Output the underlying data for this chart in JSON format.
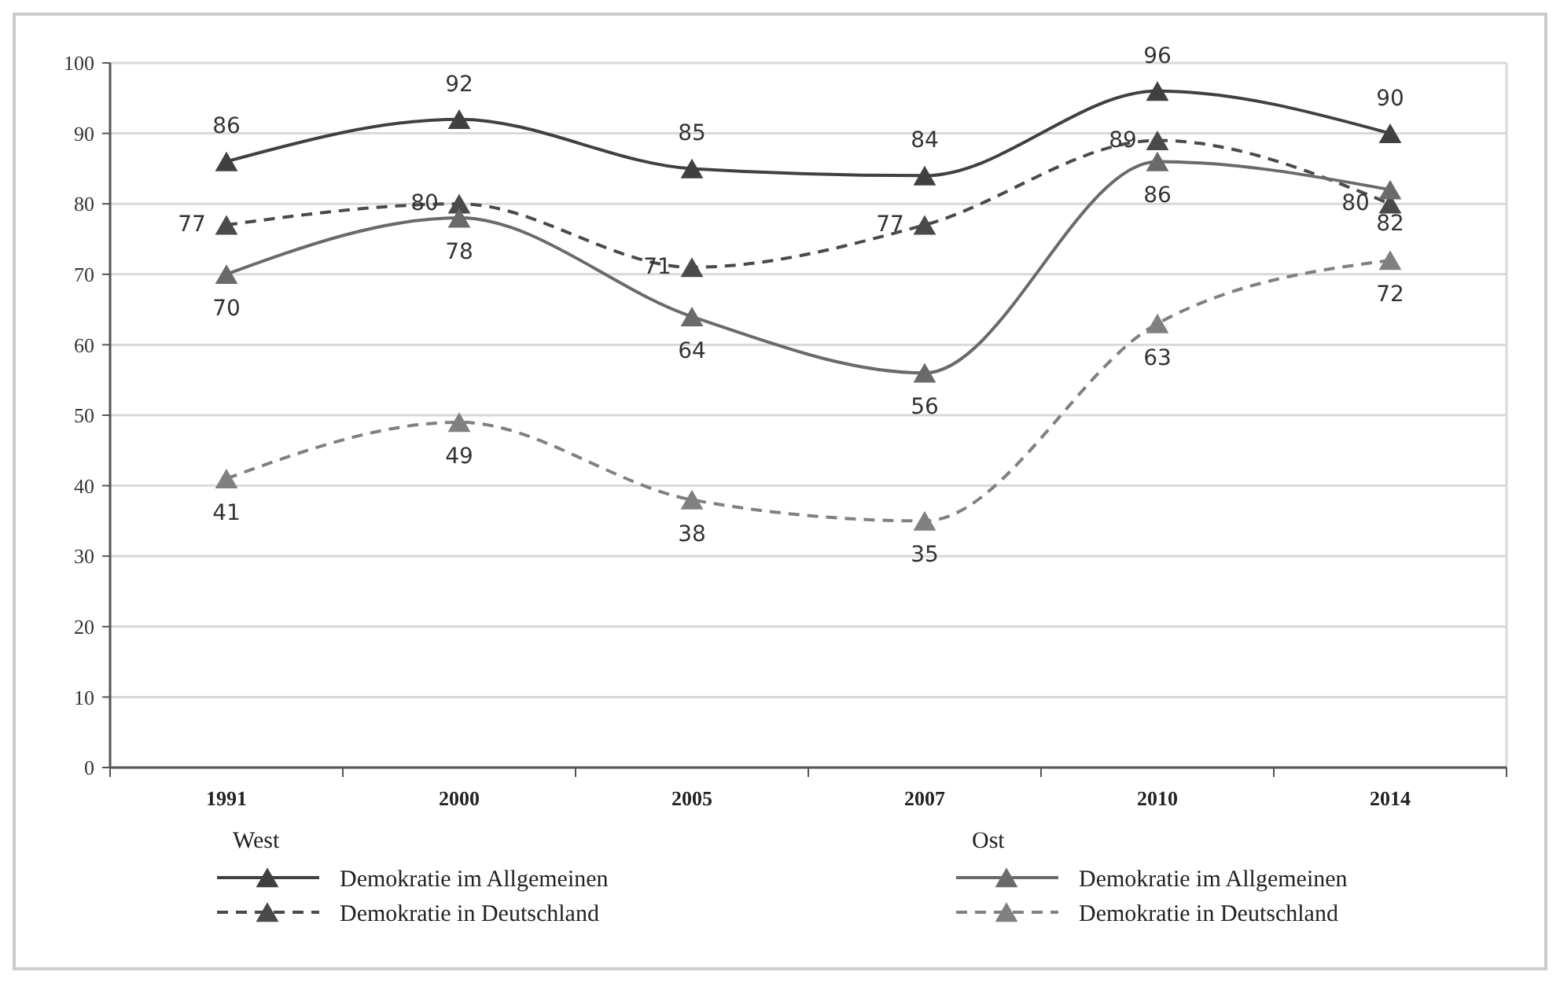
{
  "chart_data": {
    "type": "line",
    "categories": [
      "1991",
      "2000",
      "2005",
      "2007",
      "2010",
      "2014"
    ],
    "ylim": [
      0,
      100
    ],
    "yticks": [
      0,
      10,
      20,
      30,
      40,
      50,
      60,
      70,
      80,
      90,
      100
    ],
    "grid": "y",
    "marker": "triangle",
    "data_labels": true,
    "legend": "bottom",
    "annotations": [
      "West",
      "Ost"
    ],
    "series": [
      {
        "name": "Demokratie im Allgemeinen",
        "color": "#404040",
        "line_style": "solid",
        "values": [
          86,
          92,
          85,
          84,
          96,
          90
        ]
      },
      {
        "name": "Demokratie in Deutschland",
        "color": "#4a4a4a",
        "line_style": "dashed",
        "values": [
          77,
          80,
          71,
          77,
          89,
          80
        ]
      },
      {
        "name": "Demokratie im Allgemeinen",
        "color": "#6a6a6a",
        "line_style": "solid",
        "values": [
          70,
          78,
          64,
          56,
          86,
          82
        ]
      },
      {
        "name": "Demokratie in Deutschland",
        "color": "#808080",
        "line_style": "dashed",
        "values": [
          41,
          49,
          38,
          35,
          63,
          72
        ]
      }
    ]
  }
}
